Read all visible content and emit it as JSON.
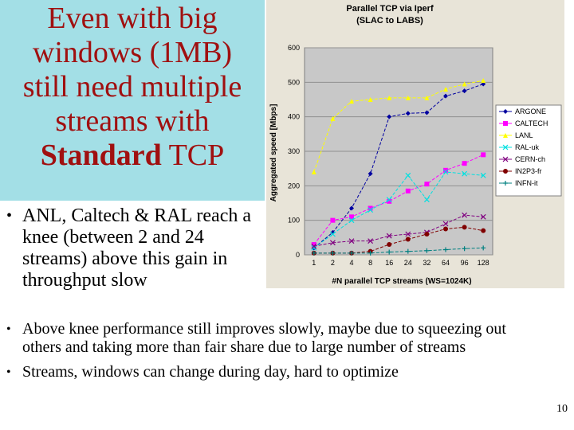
{
  "slide": {
    "title_line1": "Even with big",
    "title_line2": "windows (1MB)",
    "title_line3": "still need multiple",
    "title_line4": "streams with",
    "title_strong": "Standard",
    "title_rest": " TCP",
    "left_bullets": [
      "ANL, Caltech & RAL reach a knee (between 2 and 24 streams) above this gain in throughput slow"
    ],
    "bottom_bullets": [
      "Above knee performance still improves slowly, maybe due to squeezing out others and taking more than fair share due to large number of streams",
      "Streams, windows can change during day, hard to optimize"
    ],
    "page_number": "10",
    "bullet_glyph": "•"
  },
  "chart_data": {
    "type": "line",
    "title": "Parallel TCP via Iperf",
    "subtitle": "(SLAC to LABS)",
    "xlabel": "#N parallel TCP streams (WS=1024K)",
    "ylabel": "Aggregated speed [Mbps]",
    "categories": [
      "1",
      "2",
      "4",
      "8",
      "16",
      "24",
      "32",
      "64",
      "96",
      "128"
    ],
    "yticks": [
      0,
      100,
      200,
      300,
      400,
      500,
      600
    ],
    "ylim": [
      0,
      600
    ],
    "grid": true,
    "legend_position": "right",
    "series": [
      {
        "name": "ARGONE",
        "color": "#0000a0",
        "marker": "diamond",
        "values": [
          20,
          65,
          135,
          235,
          400,
          410,
          412,
          460,
          475,
          495
        ]
      },
      {
        "name": "CALTECH",
        "color": "#ff00ff",
        "marker": "square",
        "values": [
          30,
          100,
          110,
          135,
          155,
          185,
          205,
          245,
          265,
          290
        ]
      },
      {
        "name": "LANL",
        "color": "#ffff00",
        "marker": "triangle",
        "values": [
          240,
          395,
          445,
          450,
          455,
          455,
          455,
          480,
          495,
          505
        ]
      },
      {
        "name": "RAL-uk",
        "color": "#00e0e0",
        "marker": "x",
        "values": [
          20,
          60,
          100,
          130,
          160,
          230,
          160,
          240,
          235,
          230
        ]
      },
      {
        "name": "CERN-ch",
        "color": "#800080",
        "marker": "x",
        "values": [
          25,
          35,
          40,
          40,
          55,
          60,
          65,
          90,
          115,
          110
        ]
      },
      {
        "name": "IN2P3-fr",
        "color": "#800000",
        "marker": "circle",
        "values": [
          5,
          5,
          5,
          10,
          30,
          45,
          60,
          75,
          80,
          70
        ]
      },
      {
        "name": "INFN-it",
        "color": "#008080",
        "marker": "plus",
        "values": [
          5,
          5,
          5,
          5,
          8,
          10,
          12,
          15,
          18,
          20
        ]
      }
    ]
  }
}
